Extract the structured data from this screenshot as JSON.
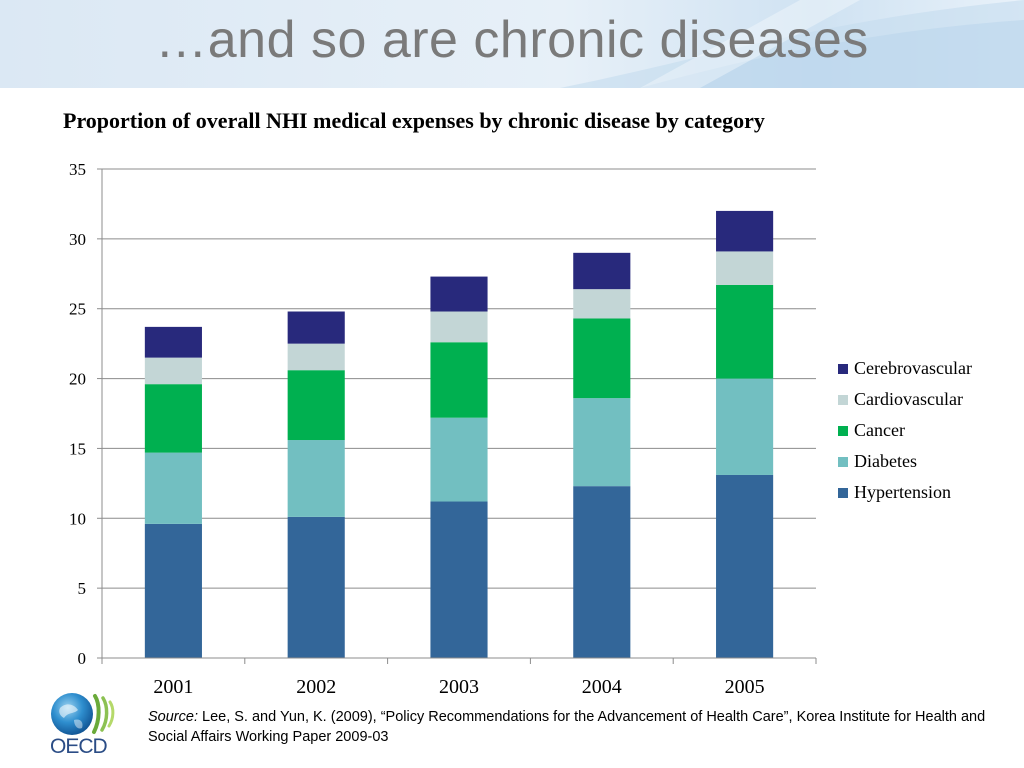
{
  "slide": {
    "title": "…and so are chronic diseases"
  },
  "chart_data": {
    "type": "bar",
    "stacked": true,
    "title": "Proportion of overall NHI medical expenses by chronic disease by category",
    "xlabel": "",
    "ylabel": "",
    "ylim": [
      0,
      35
    ],
    "yticks": [
      0,
      5,
      10,
      15,
      20,
      25,
      30,
      35
    ],
    "grid": true,
    "legend_position": "right",
    "categories": [
      "2001",
      "2002",
      "2003",
      "2004",
      "2005"
    ],
    "series": [
      {
        "name": "Hypertension",
        "color": "#336699",
        "values": [
          9.6,
          10.1,
          11.2,
          12.3,
          13.1
        ]
      },
      {
        "name": "Diabetes",
        "color": "#72bfc1",
        "values": [
          5.1,
          5.5,
          6.0,
          6.3,
          6.9
        ]
      },
      {
        "name": "Cancer",
        "color": "#00b050",
        "values": [
          4.9,
          5.0,
          5.4,
          5.7,
          6.7
        ]
      },
      {
        "name": "Cardiovascular",
        "color": "#c3d6d6",
        "values": [
          1.9,
          1.9,
          2.2,
          2.1,
          2.4
        ]
      },
      {
        "name": "Cerebrovascular",
        "color": "#28297c",
        "values": [
          2.2,
          2.3,
          2.5,
          2.6,
          2.9
        ]
      }
    ]
  },
  "source": {
    "label": "Source:",
    "text": " Lee, S. and Yun, K. (2009), “Policy Recommendations for the Advancement of Health Care”, Korea Institute for Health and Social Affairs Working Paper 2009-03"
  },
  "logo": {
    "text": "OECD",
    "color": "#2b4d86"
  }
}
